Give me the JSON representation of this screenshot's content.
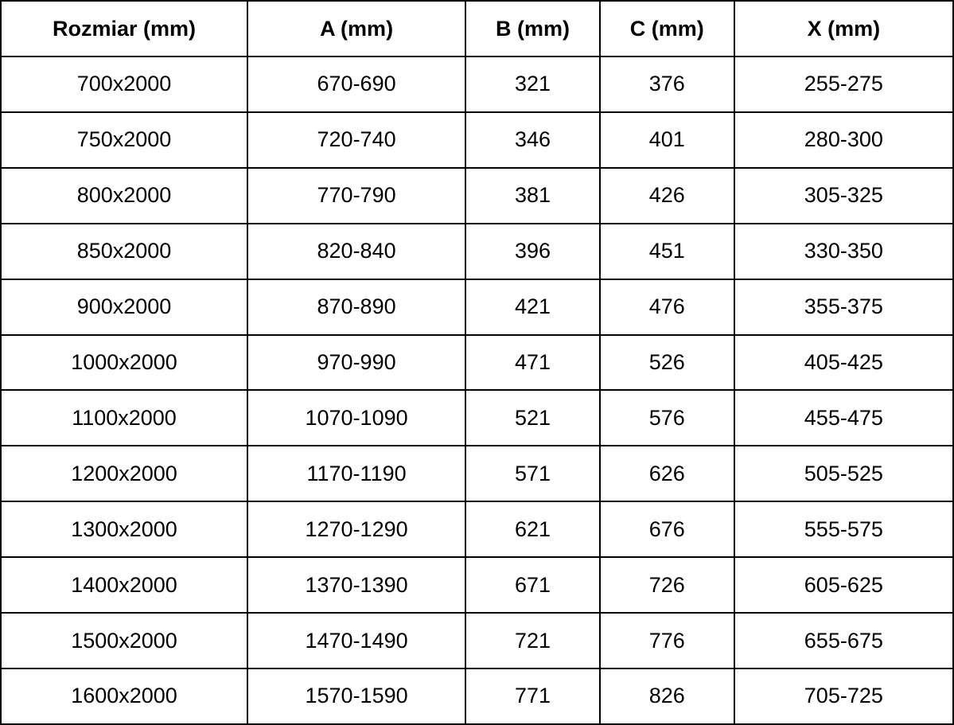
{
  "chart_data": {
    "type": "table",
    "title": "",
    "columns": [
      "Rozmiar (mm)",
      "A (mm)",
      "B (mm)",
      "C (mm)",
      "X (mm)"
    ],
    "rows": [
      [
        "700x2000",
        "670-690",
        "321",
        "376",
        "255-275"
      ],
      [
        "750x2000",
        "720-740",
        "346",
        "401",
        "280-300"
      ],
      [
        "800x2000",
        "770-790",
        "381",
        "426",
        "305-325"
      ],
      [
        "850x2000",
        "820-840",
        "396",
        "451",
        "330-350"
      ],
      [
        "900x2000",
        "870-890",
        "421",
        "476",
        "355-375"
      ],
      [
        "1000x2000",
        "970-990",
        "471",
        "526",
        "405-425"
      ],
      [
        "1100x2000",
        "1070-1090",
        "521",
        "576",
        "455-475"
      ],
      [
        "1200x2000",
        "1170-1190",
        "571",
        "626",
        "505-525"
      ],
      [
        "1300x2000",
        "1270-1290",
        "621",
        "676",
        "555-575"
      ],
      [
        "1400x2000",
        "1370-1390",
        "671",
        "726",
        "605-625"
      ],
      [
        "1500x2000",
        "1470-1490",
        "721",
        "776",
        "655-675"
      ],
      [
        "1600x2000",
        "1570-1590",
        "771",
        "826",
        "705-725"
      ]
    ]
  },
  "table": {
    "columns": [
      {
        "key": "rozmiar",
        "label": "Rozmiar (mm)"
      },
      {
        "key": "a",
        "label": "A (mm)"
      },
      {
        "key": "b",
        "label": "B (mm)"
      },
      {
        "key": "c",
        "label": "C (mm)"
      },
      {
        "key": "x",
        "label": "X (mm)"
      }
    ],
    "rows": [
      [
        "700x2000",
        "670-690",
        "321",
        "376",
        "255-275"
      ],
      [
        "750x2000",
        "720-740",
        "346",
        "401",
        "280-300"
      ],
      [
        "800x2000",
        "770-790",
        "381",
        "426",
        "305-325"
      ],
      [
        "850x2000",
        "820-840",
        "396",
        "451",
        "330-350"
      ],
      [
        "900x2000",
        "870-890",
        "421",
        "476",
        "355-375"
      ],
      [
        "1000x2000",
        "970-990",
        "471",
        "526",
        "405-425"
      ],
      [
        "1100x2000",
        "1070-1090",
        "521",
        "576",
        "455-475"
      ],
      [
        "1200x2000",
        "1170-1190",
        "571",
        "626",
        "505-525"
      ],
      [
        "1300x2000",
        "1270-1290",
        "621",
        "676",
        "555-575"
      ],
      [
        "1400x2000",
        "1370-1390",
        "671",
        "726",
        "605-625"
      ],
      [
        "1500x2000",
        "1470-1490",
        "721",
        "776",
        "655-675"
      ],
      [
        "1600x2000",
        "1570-1590",
        "771",
        "826",
        "705-725"
      ]
    ],
    "colors": {
      "border": "#000000",
      "text": "#000000",
      "background": "#ffffff"
    }
  }
}
